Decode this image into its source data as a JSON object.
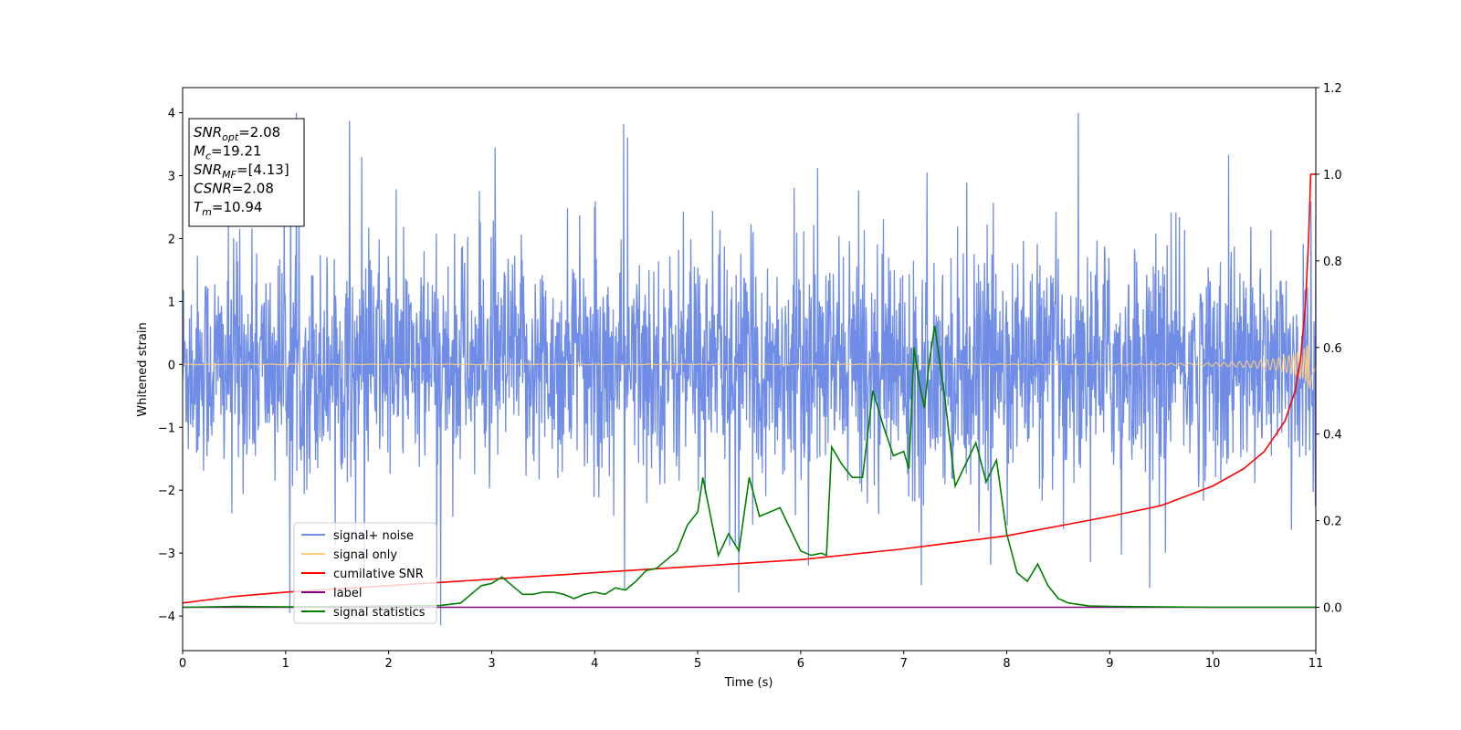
{
  "chart_data": {
    "type": "line",
    "xlabel": "Time (s)",
    "ylabel": "Whitened strain",
    "xlim": [
      0,
      11
    ],
    "ylim_left": [
      -4.55,
      4.4
    ],
    "ylim_right": [
      -0.1,
      1.2
    ],
    "x_ticks": [
      0,
      1,
      2,
      3,
      4,
      5,
      6,
      7,
      8,
      9,
      10,
      11
    ],
    "y_ticks_left": [
      -4,
      -3,
      -2,
      -1,
      0,
      1,
      2,
      3,
      4
    ],
    "y_ticks_right": [
      0.0,
      0.2,
      0.4,
      0.6,
      0.8,
      1.0,
      1.2
    ],
    "grid": false,
    "legend_position": "lower-left",
    "legend": [
      {
        "label": "signal+ noise",
        "color": "#6f8ce6"
      },
      {
        "label": "signal only",
        "color": "#ffcc80"
      },
      {
        "label": "cumilative SNR",
        "color": "#ff0000"
      },
      {
        "label": "label",
        "color": "#800080"
      },
      {
        "label": "signal statistics",
        "color": "#008000"
      }
    ],
    "annotation": {
      "lines": [
        {
          "base": "SNR",
          "sub": "opt",
          "value": "=2.08"
        },
        {
          "base": "M",
          "sub": "c",
          "value": "=19.21"
        },
        {
          "base": "SNR",
          "sub": "MF",
          "value": "=[4.13]"
        },
        {
          "base": "CSNR",
          "sub": "",
          "value": "=2.08"
        },
        {
          "base": "T",
          "sub": "m",
          "value": "=10.94"
        }
      ]
    },
    "series": [
      {
        "name": "signal+ noise",
        "axis": "left",
        "color": "#6f8ce6",
        "style": "dense-noise",
        "amplitude_std": 0.85,
        "x_range": [
          0,
          11
        ],
        "peak_max": 4.0,
        "peak_min": -4.15
      },
      {
        "name": "signal only",
        "axis": "left",
        "color": "#ffcc80",
        "style": "chirp",
        "x_range": [
          0,
          11
        ],
        "merger_time": 10.94,
        "peak_amplitude": 0.45
      },
      {
        "name": "cumilative SNR",
        "axis": "right",
        "color": "#ff0000",
        "x": [
          0,
          0.5,
          1,
          2,
          3,
          4,
          5,
          6,
          7,
          8,
          9,
          9.5,
          10,
          10.3,
          10.5,
          10.7,
          10.8,
          10.85,
          10.9,
          10.93,
          10.95,
          11
        ],
        "y": [
          0.01,
          0.025,
          0.035,
          0.05,
          0.065,
          0.08,
          0.095,
          0.11,
          0.135,
          0.165,
          0.21,
          0.235,
          0.28,
          0.32,
          0.36,
          0.43,
          0.5,
          0.57,
          0.7,
          0.85,
          1.0,
          1.0
        ]
      },
      {
        "name": "label",
        "axis": "right",
        "color": "#800080",
        "x": [
          0,
          11
        ],
        "y": [
          0,
          0
        ]
      },
      {
        "name": "signal statistics",
        "axis": "right",
        "color": "#008000",
        "x": [
          0,
          0.5,
          1,
          1.5,
          2,
          2.5,
          2.7,
          2.8,
          2.9,
          3.0,
          3.1,
          3.2,
          3.3,
          3.4,
          3.5,
          3.6,
          3.7,
          3.8,
          3.9,
          4.0,
          4.1,
          4.2,
          4.3,
          4.4,
          4.5,
          4.6,
          4.7,
          4.8,
          4.9,
          5.0,
          5.05,
          5.1,
          5.2,
          5.3,
          5.4,
          5.5,
          5.6,
          5.7,
          5.8,
          5.9,
          6.0,
          6.1,
          6.2,
          6.25,
          6.3,
          6.4,
          6.5,
          6.6,
          6.7,
          6.8,
          6.9,
          7.0,
          7.05,
          7.1,
          7.15,
          7.2,
          7.25,
          7.3,
          7.4,
          7.5,
          7.6,
          7.7,
          7.8,
          7.9,
          8.0,
          8.1,
          8.2,
          8.3,
          8.4,
          8.5,
          8.6,
          8.8,
          9.0,
          9.5,
          10,
          11
        ],
        "y": [
          0.0,
          0.002,
          0.001,
          0.002,
          0.003,
          0.004,
          0.01,
          0.03,
          0.05,
          0.055,
          0.07,
          0.05,
          0.03,
          0.03,
          0.035,
          0.035,
          0.03,
          0.02,
          0.03,
          0.035,
          0.03,
          0.045,
          0.04,
          0.06,
          0.085,
          0.09,
          0.11,
          0.13,
          0.19,
          0.22,
          0.3,
          0.24,
          0.12,
          0.17,
          0.13,
          0.3,
          0.21,
          0.22,
          0.23,
          0.18,
          0.13,
          0.12,
          0.125,
          0.12,
          0.37,
          0.33,
          0.3,
          0.3,
          0.5,
          0.42,
          0.35,
          0.36,
          0.32,
          0.6,
          0.52,
          0.46,
          0.57,
          0.65,
          0.48,
          0.28,
          0.33,
          0.38,
          0.29,
          0.34,
          0.17,
          0.08,
          0.06,
          0.1,
          0.05,
          0.02,
          0.01,
          0.003,
          0.002,
          0.001,
          0.0,
          0.0
        ]
      }
    ]
  }
}
